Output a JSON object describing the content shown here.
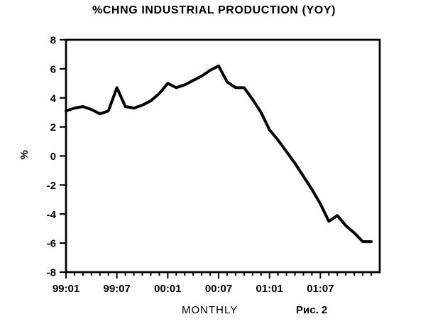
{
  "chart": {
    "title": "%CHNG INDUSTRIAL PRODUCTION (YOY)",
    "y_axis_label": "%",
    "x_axis_label": "MONTHLY",
    "figure_caption": "Рис. 2"
  },
  "chart_data": {
    "type": "line",
    "title": "%CHNG INDUSTRIAL PRODUCTION (YOY)",
    "xlabel": "MONTHLY",
    "ylabel": "%",
    "categories": [
      "99:01",
      "99:02",
      "99:03",
      "99:04",
      "99:05",
      "99:06",
      "99:07",
      "99:08",
      "99:09",
      "99:10",
      "99:11",
      "99:12",
      "00:01",
      "00:02",
      "00:03",
      "00:04",
      "00:05",
      "00:06",
      "00:07",
      "00:08",
      "00:09",
      "00:10",
      "00:11",
      "00:12",
      "01:01",
      "01:02",
      "01:03",
      "01:04",
      "01:05",
      "01:06",
      "01:07",
      "01:08",
      "01:09",
      "01:10",
      "01:11",
      "01:12",
      "02:01"
    ],
    "values": [
      3.1,
      3.3,
      3.4,
      3.2,
      2.9,
      3.1,
      4.7,
      3.4,
      3.3,
      3.5,
      3.8,
      4.3,
      5.0,
      4.7,
      4.9,
      5.2,
      5.5,
      5.9,
      6.2,
      5.1,
      4.7,
      4.7,
      3.9,
      3.0,
      1.8,
      1.1,
      0.3,
      -0.5,
      -1.4,
      -2.3,
      -3.3,
      -4.5,
      -4.1,
      -4.8,
      -5.3,
      -5.9,
      -5.9
    ],
    "x_tick_labels": [
      "99:01",
      "99:07",
      "00:01",
      "00:07",
      "01:01",
      "01:07"
    ],
    "x_tick_months": [
      0,
      6,
      12,
      18,
      24,
      30
    ],
    "x_axis_months_span": 37,
    "ylim": [
      -8,
      8
    ],
    "y_tick_step": 2,
    "y_tick_values": [
      8,
      6,
      4,
      2,
      0,
      -2,
      -4,
      -6,
      -8
    ],
    "line_color": "#000000",
    "axis_color": "#000000",
    "background": "#ffffff",
    "grid": false,
    "legend": "none"
  }
}
